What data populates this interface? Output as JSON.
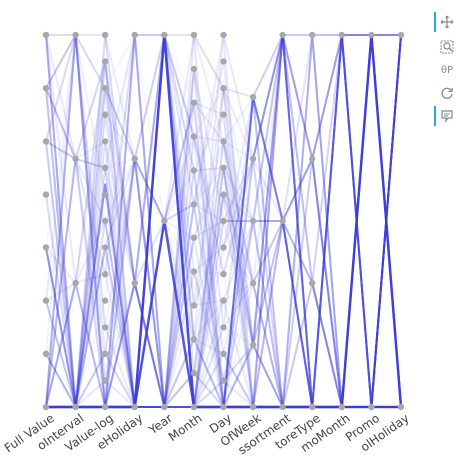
{
  "toolbar": {
    "pan_icon": "pan-icon",
    "box_zoom_icon": "box-zoom-icon",
    "wheel_zoom_label": "θP",
    "reset_icon": "reset-icon",
    "hover_icon": "hover-icon"
  },
  "colors": {
    "line": "#3b3bd9",
    "point": "#a8a8a8",
    "background": "#ffffff"
  },
  "chart_data": {
    "type": "parallel-coordinates",
    "axes": [
      "Full Value",
      "oInterval",
      "Value-log",
      "eHoliday",
      "Year",
      "Month",
      "Day",
      "OfWeek",
      "ssortment",
      "toreType",
      "moMonth",
      "Promo",
      "olHoliday"
    ],
    "axis_point_levels": [
      [
        0,
        0.143,
        0.286,
        0.429,
        0.571,
        0.714,
        0.857,
        1
      ],
      [
        0,
        0.333,
        0.667,
        1
      ],
      [
        0,
        0.071,
        0.143,
        0.214,
        0.286,
        0.357,
        0.429,
        0.5,
        0.571,
        0.643,
        0.714,
        0.786,
        0.857,
        0.929,
        1
      ],
      [
        0,
        0.333,
        0.667,
        1
      ],
      [
        0,
        0.5,
        1
      ],
      [
        0,
        0.091,
        0.182,
        0.273,
        0.364,
        0.455,
        0.545,
        0.636,
        0.727,
        0.818,
        0.909,
        1
      ],
      [
        0,
        0.071,
        0.143,
        0.214,
        0.286,
        0.357,
        0.429,
        0.5,
        0.571,
        0.643,
        0.714,
        0.786,
        0.857,
        0.929,
        1
      ],
      [
        0,
        0.167,
        0.333,
        0.5,
        0.667,
        0.833
      ],
      [
        0,
        0.5,
        1
      ],
      [
        0,
        0.333,
        0.667,
        1
      ],
      [
        0,
        1
      ],
      [
        0,
        1
      ],
      [
        0,
        1
      ]
    ],
    "highlighted_lines": [
      [
        0,
        0,
        0,
        0,
        1,
        0,
        0,
        0,
        0,
        0,
        0,
        1,
        0
      ],
      [
        0,
        0,
        0,
        0,
        0.5,
        0,
        0,
        0,
        0,
        0,
        0,
        0,
        0
      ],
      [
        0,
        0,
        0.6,
        0,
        0,
        0,
        0,
        0.833,
        0.5,
        0,
        0,
        0,
        1
      ]
    ]
  }
}
